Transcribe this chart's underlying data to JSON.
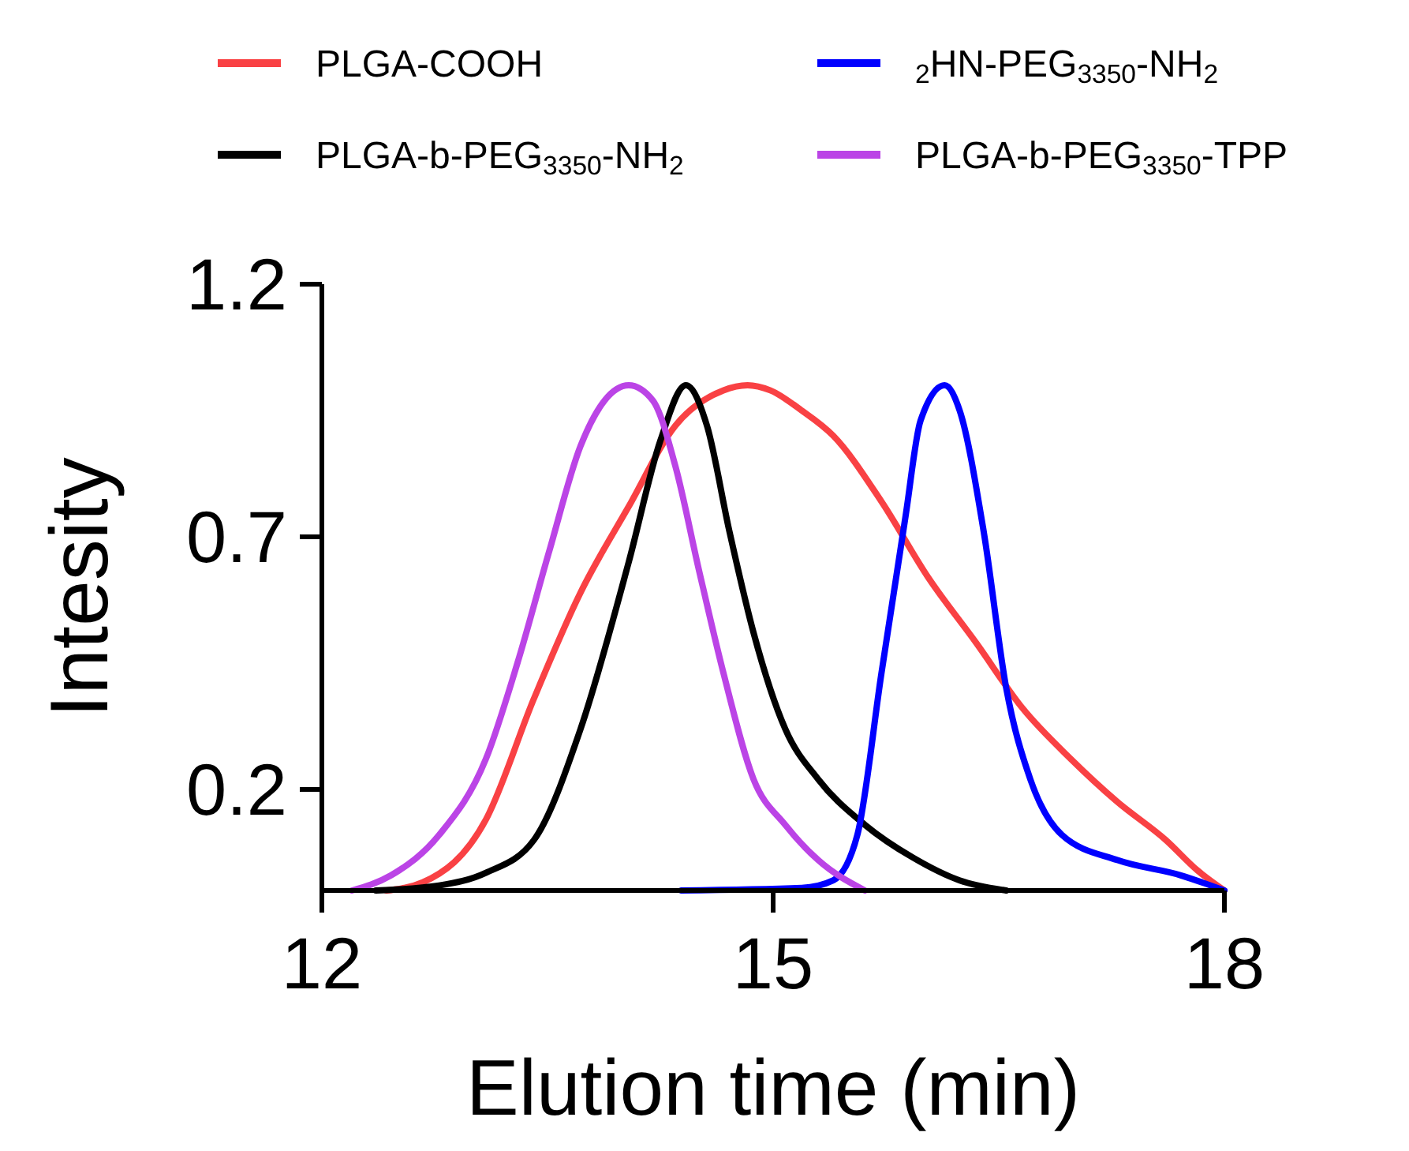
{
  "chart_data": {
    "type": "line",
    "xlabel": "Elution time (min)",
    "ylabel": "Intesity",
    "xlim": [
      12,
      18
    ],
    "xticks": [
      12,
      15,
      18
    ],
    "ylim": [
      0,
      1.2
    ],
    "yticks": [
      0.2,
      0.7,
      1.2
    ],
    "legend": "top",
    "grid": false,
    "marker": "none",
    "line_style": "solid",
    "series": [
      {
        "name": "PLGA-COOH",
        "color": "#f94144",
        "x": [
          12.43,
          12.67,
          13.09,
          13.41,
          13.72,
          14.04,
          14.35,
          14.67,
          14.83,
          14.98,
          15.19,
          15.4,
          15.72,
          16.03,
          16.35,
          16.66,
          16.98,
          17.29,
          17.61,
          17.82,
          18
        ],
        "values": [
          0,
          0.016,
          0.14,
          0.38,
          0.59,
          0.76,
          0.92,
          0.99,
          1.0,
          0.99,
          0.95,
          0.9,
          0.77,
          0.62,
          0.49,
          0.36,
          0.26,
          0.175,
          0.1,
          0.04,
          0
        ]
      },
      {
        "name": "PLGA-b-PEG$_{3350}$-NH$_{2}$",
        "color": "#000000",
        "x": [
          12.36,
          12.78,
          13.09,
          13.41,
          13.72,
          14.04,
          14.25,
          14.42,
          14.56,
          14.71,
          14.87,
          15.08,
          15.3,
          15.61,
          15.93,
          16.24,
          16.55
        ],
        "values": [
          0,
          0.01,
          0.035,
          0.1,
          0.32,
          0.65,
          0.89,
          1.0,
          0.92,
          0.71,
          0.51,
          0.32,
          0.22,
          0.13,
          0.065,
          0.02,
          0
        ]
      },
      {
        "name": "$_{2}$HN-PEG$_{3350}$-NH$_{2}$",
        "color": "#0000ff",
        "x": [
          14.39,
          15.19,
          15.4,
          15.56,
          15.72,
          15.88,
          15.98,
          16.14,
          16.24,
          16.4,
          16.55,
          16.71,
          16.92,
          17.29,
          17.71,
          18
        ],
        "values": [
          0,
          0.005,
          0.02,
          0.11,
          0.43,
          0.74,
          0.93,
          1.0,
          0.95,
          0.71,
          0.4,
          0.22,
          0.11,
          0.06,
          0.03,
          0
        ]
      },
      {
        "name": "PLGA-b-PEG$_{3350}$-TPP",
        "color": "#bb44e6",
        "x": [
          12.2,
          12.46,
          12.78,
          13.09,
          13.3,
          13.51,
          13.72,
          13.88,
          14.04,
          14.2,
          14.35,
          14.51,
          14.67,
          14.87,
          15.08,
          15.3,
          15.61
        ],
        "values": [
          0,
          0.03,
          0.11,
          0.26,
          0.45,
          0.67,
          0.88,
          0.97,
          1.0,
          0.97,
          0.84,
          0.63,
          0.43,
          0.22,
          0.13,
          0.06,
          0
        ]
      }
    ]
  }
}
